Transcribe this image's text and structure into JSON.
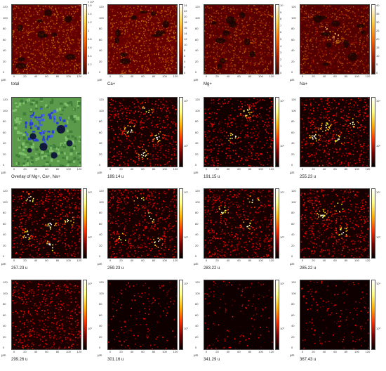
{
  "axis": {
    "unit": "µm",
    "x_ticks": [
      "0",
      "20",
      "40",
      "60",
      "80",
      "100",
      "120"
    ],
    "y_ticks": [
      "120",
      "100",
      "80",
      "60",
      "40",
      "20",
      "0"
    ]
  },
  "panels": [
    {
      "caption": "total",
      "colormap": "redhot",
      "hot": [],
      "seed": 11,
      "base": 0.32,
      "density": 0.95,
      "cbar_labels": [
        "1.6",
        "1.4",
        "1.2",
        "1",
        "0.8",
        "0.6",
        "0.4",
        "0.2",
        "0"
      ],
      "cbar_top": "x 10⁴"
    },
    {
      "caption": "Ca+",
      "colormap": "redhot",
      "hot": [],
      "seed": 12,
      "base": 0.34,
      "density": 0.95,
      "cbar_labels": [
        "24",
        "22",
        "20",
        "18",
        "16",
        "14",
        "12",
        "10",
        "8",
        "6",
        "4",
        "2",
        "0"
      ],
      "cbar_top": ""
    },
    {
      "caption": "Mg+",
      "colormap": "redhot",
      "hot": [],
      "seed": 13,
      "base": 0.22,
      "density": 0.9,
      "cbar_labels": [
        "10",
        "9",
        "8",
        "7",
        "6",
        "5",
        "4",
        "3",
        "2",
        "1",
        "0"
      ],
      "cbar_top": ""
    },
    {
      "caption": "Na+",
      "colormap": "redhot",
      "hot": [
        [
          0.35,
          0.35
        ],
        [
          0.5,
          0.45
        ]
      ],
      "seed": 14,
      "base": 0.18,
      "density": 0.85,
      "cbar_labels": [
        "40",
        "35",
        "30",
        "25",
        "20",
        "15",
        "10",
        "5",
        "0"
      ],
      "cbar_top": ""
    },
    {
      "caption": "Overlay of Mg+, Ca+, Na+",
      "colormap": "overlay",
      "hot": [],
      "seed": 21,
      "base": 0.5,
      "density": 1,
      "cbar_labels": [],
      "cbar_top": ""
    },
    {
      "caption": "189.14 u",
      "colormap": "hot",
      "hot": [
        [
          0.55,
          0.15
        ],
        [
          0.3,
          0.45
        ],
        [
          0.7,
          0.55
        ],
        [
          0.5,
          0.8
        ]
      ],
      "seed": 22,
      "base": 0.05,
      "density": 0.5,
      "cbar_labels": [
        "10¹",
        "10⁰"
      ],
      "cbar_top": ""
    },
    {
      "caption": "191.15 u",
      "colormap": "hot",
      "hot": [
        [
          0.6,
          0.2
        ],
        [
          0.4,
          0.55
        ]
      ],
      "seed": 23,
      "base": 0.04,
      "density": 0.45,
      "cbar_labels": [
        "10¹",
        "10⁰"
      ],
      "cbar_top": ""
    },
    {
      "caption": "255.23 u",
      "colormap": "hot",
      "hot": [
        [
          0.35,
          0.4
        ],
        [
          0.55,
          0.6
        ],
        [
          0.2,
          0.55
        ],
        [
          0.75,
          0.35
        ]
      ],
      "seed": 24,
      "base": 0.05,
      "density": 0.5,
      "cbar_labels": [
        "10¹",
        "10⁰"
      ],
      "cbar_top": ""
    },
    {
      "caption": "257.23 u",
      "colormap": "hot",
      "hot": [
        [
          0.25,
          0.15
        ],
        [
          0.55,
          0.5
        ],
        [
          0.2,
          0.65
        ],
        [
          0.8,
          0.45
        ],
        [
          0.55,
          0.8
        ]
      ],
      "seed": 31,
      "base": 0.05,
      "density": 0.5,
      "cbar_labels": [
        "10¹",
        "10⁰"
      ],
      "cbar_top": ""
    },
    {
      "caption": "259.23 u",
      "colormap": "hot",
      "hot": [
        [
          0.45,
          0.15
        ],
        [
          0.6,
          0.4
        ],
        [
          0.2,
          0.7
        ],
        [
          0.7,
          0.75
        ]
      ],
      "seed": 32,
      "base": 0.05,
      "density": 0.5,
      "cbar_labels": [
        "10¹",
        "10⁰"
      ],
      "cbar_top": ""
    },
    {
      "caption": "283.22 u",
      "colormap": "hot",
      "hot": [
        [
          0.7,
          0.15
        ],
        [
          0.25,
          0.3
        ],
        [
          0.6,
          0.5
        ]
      ],
      "seed": 33,
      "base": 0.05,
      "density": 0.5,
      "cbar_labels": [
        "10¹",
        "10⁰"
      ],
      "cbar_top": ""
    },
    {
      "caption": "285.22 u",
      "colormap": "hot",
      "hot": [
        [
          0.55,
          0.25
        ],
        [
          0.3,
          0.35
        ],
        [
          0.6,
          0.6
        ]
      ],
      "seed": 34,
      "base": 0.05,
      "density": 0.5,
      "cbar_labels": [
        "10¹",
        "10⁰"
      ],
      "cbar_top": ""
    },
    {
      "caption": "299.26 u",
      "colormap": "hot",
      "hot": [],
      "seed": 41,
      "base": 0.06,
      "density": 0.45,
      "cbar_labels": [
        "10¹",
        "10⁰"
      ],
      "cbar_top": ""
    },
    {
      "caption": "301.16 u",
      "colormap": "hot",
      "hot": [],
      "seed": 42,
      "base": 0.03,
      "density": 0.15,
      "cbar_labels": [
        "10¹",
        "10⁰"
      ],
      "cbar_top": ""
    },
    {
      "caption": "341.29 u",
      "colormap": "hot",
      "hot": [],
      "seed": 43,
      "base": 0.03,
      "density": 0.12,
      "cbar_labels": [
        "10¹",
        "10⁰"
      ],
      "cbar_top": ""
    },
    {
      "caption": "367.43 u",
      "colormap": "hot",
      "hot": [],
      "seed": 44,
      "base": 0.03,
      "density": 0.15,
      "cbar_labels": [
        "10¹",
        "10⁰"
      ],
      "cbar_top": ""
    }
  ]
}
